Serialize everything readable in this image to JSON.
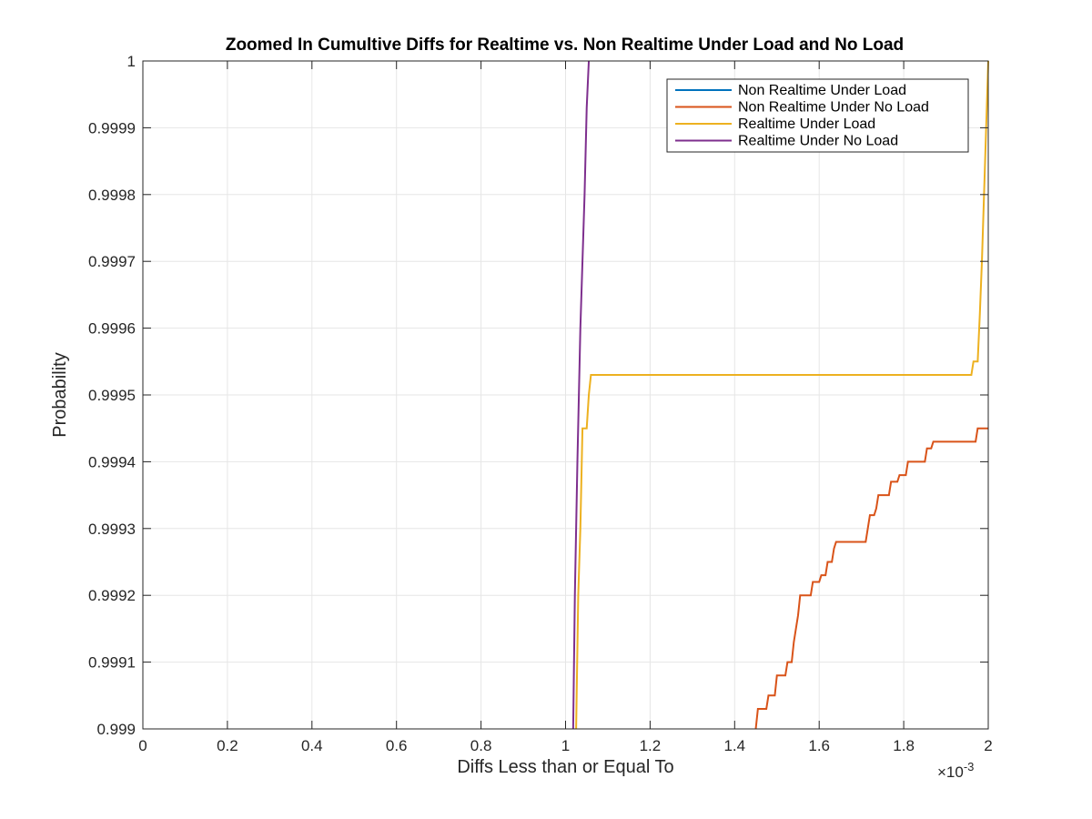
{
  "chart_data": {
    "type": "line",
    "title": "Zoomed In Cumultive Diffs for Realtime vs. Non Realtime Under Load and No Load",
    "xlabel": "Diffs Less than or Equal To",
    "ylabel": "Probability",
    "x_exponent_base": "×10",
    "x_exponent_power": "-3",
    "xlim": [
      0,
      2
    ],
    "ylim": [
      0.999,
      1
    ],
    "x_ticks": [
      "0",
      "0.2",
      "0.4",
      "0.6",
      "0.8",
      "1",
      "1.2",
      "1.4",
      "1.6",
      "1.8",
      "2"
    ],
    "y_ticks": [
      "0.999",
      "0.9991",
      "0.9992",
      "0.9993",
      "0.9994",
      "0.9995",
      "0.9996",
      "0.9997",
      "0.9998",
      "0.9999",
      "1"
    ],
    "grid": true,
    "legend_position": "top-right",
    "series": [
      {
        "name": "Non Realtime Under Load",
        "color": "#0072BD",
        "points": []
      },
      {
        "name": "Non Realtime Under No Load",
        "color": "#D95319",
        "points": [
          [
            1.45,
            0.999
          ],
          [
            1.455,
            0.99903
          ],
          [
            1.475,
            0.99903
          ],
          [
            1.48,
            0.99905
          ],
          [
            1.495,
            0.99905
          ],
          [
            1.5,
            0.99908
          ],
          [
            1.52,
            0.99908
          ],
          [
            1.525,
            0.9991
          ],
          [
            1.535,
            0.9991
          ],
          [
            1.54,
            0.99913
          ],
          [
            1.545,
            0.99915
          ],
          [
            1.55,
            0.99917
          ],
          [
            1.555,
            0.9992
          ],
          [
            1.58,
            0.9992
          ],
          [
            1.585,
            0.99922
          ],
          [
            1.6,
            0.99922
          ],
          [
            1.605,
            0.99923
          ],
          [
            1.615,
            0.99923
          ],
          [
            1.62,
            0.99925
          ],
          [
            1.63,
            0.99925
          ],
          [
            1.635,
            0.99927
          ],
          [
            1.64,
            0.99928
          ],
          [
            1.71,
            0.99928
          ],
          [
            1.715,
            0.9993
          ],
          [
            1.72,
            0.99932
          ],
          [
            1.73,
            0.99932
          ],
          [
            1.735,
            0.99933
          ],
          [
            1.74,
            0.99935
          ],
          [
            1.765,
            0.99935
          ],
          [
            1.77,
            0.99937
          ],
          [
            1.785,
            0.99937
          ],
          [
            1.79,
            0.99938
          ],
          [
            1.805,
            0.99938
          ],
          [
            1.81,
            0.9994
          ],
          [
            1.85,
            0.9994
          ],
          [
            1.855,
            0.99942
          ],
          [
            1.865,
            0.99942
          ],
          [
            1.87,
            0.99943
          ],
          [
            1.97,
            0.99943
          ],
          [
            1.975,
            0.99945
          ],
          [
            2.0,
            0.99945
          ]
        ]
      },
      {
        "name": "Realtime Under Load",
        "color": "#EDB120",
        "points": [
          [
            1.025,
            0.999
          ],
          [
            1.03,
            0.9992
          ],
          [
            1.035,
            0.9993
          ],
          [
            1.04,
            0.99945
          ],
          [
            1.05,
            0.99945
          ],
          [
            1.055,
            0.9995
          ],
          [
            1.06,
            0.99953
          ],
          [
            1.96,
            0.99953
          ],
          [
            1.965,
            0.99955
          ],
          [
            1.975,
            0.99955
          ],
          [
            1.98,
            0.99962
          ],
          [
            1.985,
            0.9997
          ],
          [
            1.99,
            0.9998
          ],
          [
            1.995,
            0.9999
          ],
          [
            2.0,
            1.0
          ]
        ]
      },
      {
        "name": "Realtime Under No Load",
        "color": "#7E2F8E",
        "points": [
          [
            1.018,
            0.999
          ],
          [
            1.022,
            0.9992
          ],
          [
            1.028,
            0.9994
          ],
          [
            1.035,
            0.9996
          ],
          [
            1.04,
            0.9997
          ],
          [
            1.045,
            0.9998
          ],
          [
            1.05,
            0.99993
          ],
          [
            1.055,
            1.0
          ]
        ]
      }
    ]
  }
}
